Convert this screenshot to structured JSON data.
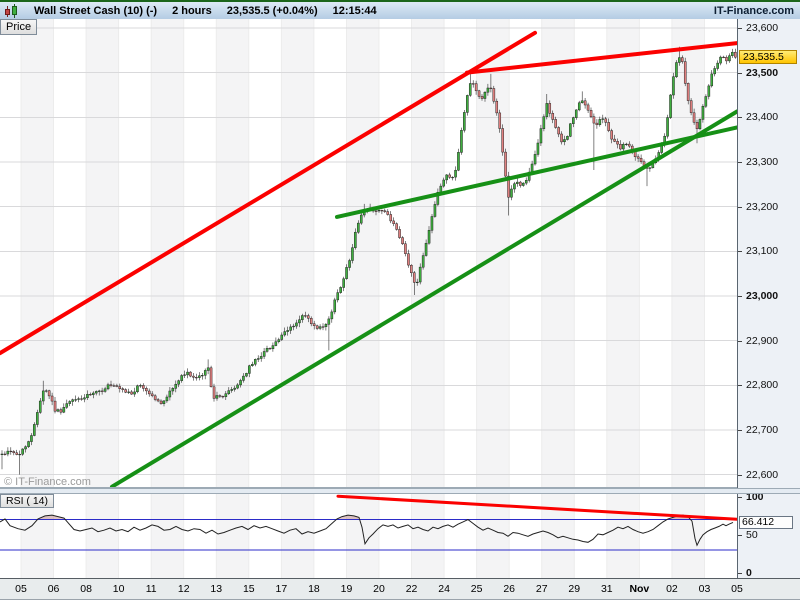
{
  "titlebar": {
    "symbol": "Wall Street Cash (10) (-)",
    "timeframe": "2 hours",
    "last_price": "23,535.5 (+0.04%)",
    "time": "12:15:44",
    "brand": "IT-Finance.com"
  },
  "tabs": {
    "price_label": "Price",
    "rsi_label": "RSI ( 14)"
  },
  "watermark": "© IT-Finance.com",
  "price_marker": {
    "label": "23,535.5",
    "value": 23535.5
  },
  "rsi_marker": {
    "label": "66.412",
    "value": 66.412
  },
  "colors": {
    "up_candle": "#3fae3f",
    "down_candle": "#e08080",
    "candle_outline": "#1a1a1a",
    "trend_red": "#fb0100",
    "trend_green": "#169016",
    "rsi_line": "#222222",
    "rsi_fill": "#b97f7f",
    "level_blue": "#2b2bc8",
    "stripe": "#f4f4f5",
    "grid": "#d9d9db",
    "vline": "#ececec"
  },
  "chart_data": {
    "type": "candlestick",
    "title": "Wall Street Cash (10), 2-hour candles, Oct 05 - Nov 05",
    "x_axis": {
      "labels": [
        "05",
        "06",
        "08",
        "10",
        "11",
        "12",
        "13",
        "15",
        "17",
        "18",
        "19",
        "20",
        "22",
        "24",
        "25",
        "26",
        "27",
        "29",
        "31",
        "Nov",
        "02",
        "03",
        "05"
      ],
      "bold_label": "Nov"
    },
    "y_axis": {
      "min": 22570,
      "max": 23620,
      "ticks": [
        {
          "v": 23600,
          "label": "23,600",
          "bold": false
        },
        {
          "v": 23500,
          "label": "23,500",
          "bold": true
        },
        {
          "v": 23400,
          "label": "23,400",
          "bold": false
        },
        {
          "v": 23300,
          "label": "23,300",
          "bold": false
        },
        {
          "v": 23200,
          "label": "23,200",
          "bold": false
        },
        {
          "v": 23100,
          "label": "23,100",
          "bold": false
        },
        {
          "v": 23000,
          "label": "23,000",
          "bold": true
        },
        {
          "v": 22900,
          "label": "22,900",
          "bold": false
        },
        {
          "v": 22800,
          "label": "22,800",
          "bold": false
        },
        {
          "v": 22700,
          "label": "22,700",
          "bold": false
        },
        {
          "v": 22600,
          "label": "22,600",
          "bold": false
        }
      ]
    },
    "close_path": [
      [
        0,
        22645
      ],
      [
        6,
        22650
      ],
      [
        12,
        22655
      ],
      [
        18,
        22640
      ],
      [
        25,
        22665
      ],
      [
        31,
        22680
      ],
      [
        38,
        22750
      ],
      [
        44,
        22795
      ],
      [
        50,
        22775
      ],
      [
        56,
        22740
      ],
      [
        62,
        22745
      ],
      [
        68,
        22760
      ],
      [
        76,
        22768
      ],
      [
        84,
        22772
      ],
      [
        92,
        22780
      ],
      [
        100,
        22785
      ],
      [
        108,
        22800
      ],
      [
        116,
        22795
      ],
      [
        124,
        22785
      ],
      [
        132,
        22782
      ],
      [
        140,
        22800
      ],
      [
        148,
        22785
      ],
      [
        155,
        22770
      ],
      [
        161,
        22757
      ],
      [
        168,
        22780
      ],
      [
        175,
        22800
      ],
      [
        182,
        22820
      ],
      [
        189,
        22828
      ],
      [
        196,
        22812
      ],
      [
        203,
        22825
      ],
      [
        208,
        22840
      ],
      [
        213,
        22775
      ],
      [
        219,
        22772
      ],
      [
        226,
        22782
      ],
      [
        234,
        22792
      ],
      [
        242,
        22815
      ],
      [
        250,
        22842
      ],
      [
        258,
        22862
      ],
      [
        266,
        22878
      ],
      [
        274,
        22893
      ],
      [
        282,
        22910
      ],
      [
        290,
        22928
      ],
      [
        297,
        22940
      ],
      [
        304,
        22958
      ],
      [
        310,
        22942
      ],
      [
        316,
        22925
      ],
      [
        322,
        22928
      ],
      [
        328,
        22938
      ],
      [
        334,
        22985
      ],
      [
        341,
        23025
      ],
      [
        348,
        23070
      ],
      [
        353,
        23115
      ],
      [
        358,
        23165
      ],
      [
        363,
        23190
      ],
      [
        370,
        23196
      ],
      [
        377,
        23192
      ],
      [
        384,
        23188
      ],
      [
        390,
        23175
      ],
      [
        396,
        23148
      ],
      [
        402,
        23118
      ],
      [
        407,
        23082
      ],
      [
        412,
        23045
      ],
      [
        416,
        23018
      ],
      [
        420,
        23065
      ],
      [
        425,
        23110
      ],
      [
        430,
        23160
      ],
      [
        436,
        23215
      ],
      [
        441,
        23250
      ],
      [
        447,
        23272
      ],
      [
        452,
        23262
      ],
      [
        457,
        23295
      ],
      [
        462,
        23380
      ],
      [
        467,
        23445
      ],
      [
        471,
        23488
      ],
      [
        476,
        23462
      ],
      [
        481,
        23438
      ],
      [
        486,
        23458
      ],
      [
        490,
        23472
      ],
      [
        495,
        23430
      ],
      [
        500,
        23368
      ],
      [
        504,
        23292
      ],
      [
        508,
        23222
      ],
      [
        512,
        23242
      ],
      [
        517,
        23256
      ],
      [
        522,
        23246
      ],
      [
        527,
        23264
      ],
      [
        532,
        23292
      ],
      [
        537,
        23330
      ],
      [
        542,
        23388
      ],
      [
        547,
        23428
      ],
      [
        551,
        23406
      ],
      [
        556,
        23376
      ],
      [
        561,
        23342
      ],
      [
        566,
        23352
      ],
      [
        571,
        23386
      ],
      [
        576,
        23414
      ],
      [
        581,
        23438
      ],
      [
        586,
        23424
      ],
      [
        591,
        23402
      ],
      [
        596,
        23382
      ],
      [
        601,
        23400
      ],
      [
        606,
        23386
      ],
      [
        611,
        23356
      ],
      [
        616,
        23342
      ],
      [
        621,
        23330
      ],
      [
        626,
        23342
      ],
      [
        631,
        23326
      ],
      [
        636,
        23312
      ],
      [
        641,
        23300
      ],
      [
        646,
        23282
      ],
      [
        651,
        23292
      ],
      [
        656,
        23312
      ],
      [
        661,
        23336
      ],
      [
        665,
        23362
      ],
      [
        669,
        23422
      ],
      [
        673,
        23488
      ],
      [
        677,
        23524
      ],
      [
        681,
        23538
      ],
      [
        684,
        23498
      ],
      [
        687,
        23452
      ],
      [
        690,
        23422
      ],
      [
        693,
        23400
      ],
      [
        696,
        23366
      ],
      [
        700,
        23392
      ],
      [
        703,
        23422
      ],
      [
        707,
        23456
      ],
      [
        711,
        23490
      ],
      [
        715,
        23510
      ],
      [
        719,
        23524
      ],
      [
        723,
        23540
      ],
      [
        727,
        23528
      ],
      [
        731,
        23544
      ],
      [
        735,
        23536
      ]
    ],
    "wick_spikes": [
      [
        3,
        22612
      ],
      [
        20,
        22600
      ],
      [
        44,
        22810
      ],
      [
        208,
        22858
      ],
      [
        328,
        22878
      ],
      [
        363,
        23206
      ],
      [
        415,
        23002
      ],
      [
        470,
        23502
      ],
      [
        491,
        23497
      ],
      [
        508,
        23180
      ],
      [
        547,
        23452
      ],
      [
        583,
        23458
      ],
      [
        593,
        23282
      ],
      [
        646,
        23246
      ],
      [
        680,
        23558
      ],
      [
        696,
        23342
      ]
    ],
    "trend_lines": [
      {
        "name": "red-channel-lower",
        "color": "red",
        "width": 4,
        "from": [
          0,
          22872
        ],
        "to": [
          535,
          23589
        ]
      },
      {
        "name": "red-resistance",
        "color": "red",
        "width": 4,
        "from": [
          467,
          23500
        ],
        "to": [
          737,
          23566
        ]
      },
      {
        "name": "green-support-short",
        "color": "green",
        "width": 4,
        "from": [
          337,
          23177
        ],
        "to": [
          737,
          23377
        ]
      },
      {
        "name": "green-support-long",
        "color": "green",
        "width": 4,
        "from": [
          112,
          22573
        ],
        "to": [
          737,
          23413
        ]
      }
    ],
    "rsi": {
      "name": "RSI ( 14)",
      "range": [
        0,
        100
      ],
      "blue_levels": [
        70,
        30
      ],
      "axis_ticks": [
        {
          "v": 100,
          "label": "100",
          "bold": true
        },
        {
          "v": 50,
          "label": "50",
          "bold": false
        },
        {
          "v": 0,
          "label": "0",
          "bold": true
        }
      ],
      "overbought_fill_above": 70,
      "trend_line": {
        "color": "red",
        "width": 3,
        "from": [
          338,
          101
        ],
        "to": [
          737,
          70.5
        ]
      },
      "path": [
        [
          0,
          67
        ],
        [
          5,
          71
        ],
        [
          10,
          62
        ],
        [
          18,
          58
        ],
        [
          25,
          56
        ],
        [
          32,
          62
        ],
        [
          38,
          71
        ],
        [
          45,
          75
        ],
        [
          52,
          76
        ],
        [
          58,
          74
        ],
        [
          64,
          72
        ],
        [
          68,
          66
        ],
        [
          74,
          57
        ],
        [
          80,
          55
        ],
        [
          86,
          57
        ],
        [
          92,
          59
        ],
        [
          98,
          54
        ],
        [
          104,
          56
        ],
        [
          110,
          59
        ],
        [
          116,
          55
        ],
        [
          122,
          57
        ],
        [
          128,
          54
        ],
        [
          134,
          60
        ],
        [
          140,
          56
        ],
        [
          146,
          59
        ],
        [
          152,
          63
        ],
        [
          158,
          61
        ],
        [
          164,
          56
        ],
        [
          170,
          57
        ],
        [
          176,
          61
        ],
        [
          182,
          57
        ],
        [
          188,
          55
        ],
        [
          194,
          58
        ],
        [
          200,
          57
        ],
        [
          206,
          52
        ],
        [
          212,
          56
        ],
        [
          218,
          51
        ],
        [
          224,
          53
        ],
        [
          230,
          56
        ],
        [
          236,
          59
        ],
        [
          242,
          61
        ],
        [
          248,
          57
        ],
        [
          254,
          62
        ],
        [
          260,
          59
        ],
        [
          266,
          61
        ],
        [
          272,
          58
        ],
        [
          278,
          55
        ],
        [
          284,
          52
        ],
        [
          290,
          56
        ],
        [
          296,
          58
        ],
        [
          302,
          51
        ],
        [
          308,
          54
        ],
        [
          314,
          52
        ],
        [
          320,
          55
        ],
        [
          326,
          58
        ],
        [
          332,
          65
        ],
        [
          337,
          71
        ],
        [
          342,
          74
        ],
        [
          348,
          76
        ],
        [
          354,
          75
        ],
        [
          359,
          73
        ],
        [
          362,
          60
        ],
        [
          365,
          38
        ],
        [
          369,
          46
        ],
        [
          373,
          51
        ],
        [
          378,
          58
        ],
        [
          383,
          63
        ],
        [
          388,
          61
        ],
        [
          393,
          63
        ],
        [
          398,
          59
        ],
        [
          403,
          61
        ],
        [
          408,
          63
        ],
        [
          413,
          58
        ],
        [
          418,
          60
        ],
        [
          423,
          57
        ],
        [
          428,
          55
        ],
        [
          433,
          60
        ],
        [
          438,
          58
        ],
        [
          443,
          61
        ],
        [
          448,
          63
        ],
        [
          453,
          60
        ],
        [
          458,
          64
        ],
        [
          463,
          67
        ],
        [
          468,
          70
        ],
        [
          473,
          65
        ],
        [
          478,
          60
        ],
        [
          483,
          56
        ],
        [
          488,
          59
        ],
        [
          493,
          56
        ],
        [
          498,
          53
        ],
        [
          503,
          52
        ],
        [
          508,
          48
        ],
        [
          513,
          53
        ],
        [
          518,
          52
        ],
        [
          523,
          50
        ],
        [
          528,
          48
        ],
        [
          533,
          51
        ],
        [
          538,
          53
        ],
        [
          543,
          55
        ],
        [
          548,
          53
        ],
        [
          553,
          50
        ],
        [
          558,
          46
        ],
        [
          563,
          48
        ],
        [
          568,
          46
        ],
        [
          573,
          44
        ],
        [
          578,
          43
        ],
        [
          583,
          41
        ],
        [
          588,
          40
        ],
        [
          593,
          44
        ],
        [
          598,
          51
        ],
        [
          603,
          50
        ],
        [
          608,
          53
        ],
        [
          613,
          56
        ],
        [
          618,
          60
        ],
        [
          623,
          58
        ],
        [
          628,
          61
        ],
        [
          633,
          57
        ],
        [
          638,
          54
        ],
        [
          643,
          52
        ],
        [
          648,
          54
        ],
        [
          653,
          57
        ],
        [
          658,
          62
        ],
        [
          663,
          67
        ],
        [
          668,
          71
        ],
        [
          673,
          73
        ],
        [
          678,
          75
        ],
        [
          683,
          76
        ],
        [
          688,
          74
        ],
        [
          692,
          68
        ],
        [
          695,
          45
        ],
        [
          697,
          36
        ],
        [
          700,
          44
        ],
        [
          703,
          50
        ],
        [
          707,
          54
        ],
        [
          711,
          57
        ],
        [
          715,
          59
        ],
        [
          719,
          61
        ],
        [
          723,
          64
        ],
        [
          726,
          62
        ],
        [
          729,
          64
        ],
        [
          733,
          66.4
        ]
      ]
    }
  }
}
